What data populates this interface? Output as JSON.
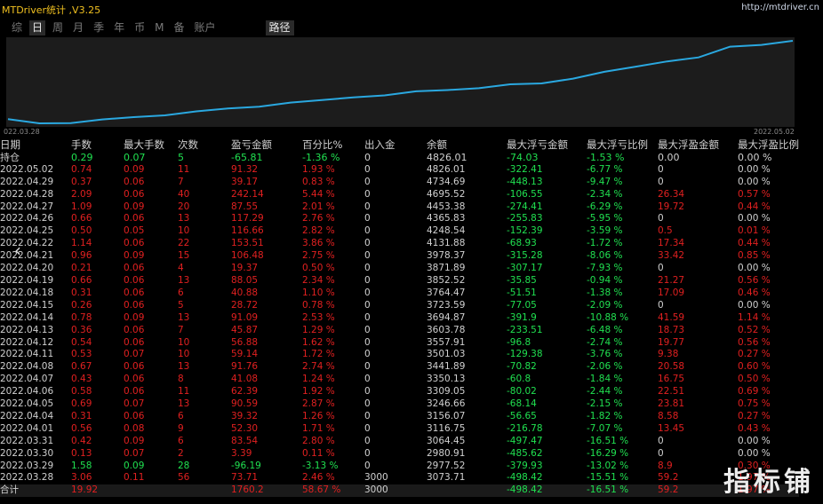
{
  "app": {
    "title": "MTDriver统计 ,V3.25",
    "url": "http://mtdriver.cn",
    "watermark": "指标铺"
  },
  "tabs": [
    {
      "label": "综",
      "active": false
    },
    {
      "label": "日",
      "active": true
    },
    {
      "label": "周",
      "active": false
    },
    {
      "label": "月",
      "active": false
    },
    {
      "label": "季",
      "active": false
    },
    {
      "label": "年",
      "active": false
    },
    {
      "label": "币",
      "active": false
    },
    {
      "label": "M",
      "active": false
    },
    {
      "label": "备",
      "active": false
    },
    {
      "label": "账户",
      "active": false
    }
  ],
  "path_tab": "路径",
  "chart_data": {
    "type": "line",
    "x_start_label": "022.03.28",
    "x_end_label": "2022.05.02",
    "x": [
      "2022.03.28",
      "2022.03.29",
      "2022.03.30",
      "2022.03.31",
      "2022.04.01",
      "2022.04.04",
      "2022.04.05",
      "2022.04.06",
      "2022.04.07",
      "2022.04.08",
      "2022.04.11",
      "2022.04.12",
      "2022.04.13",
      "2022.04.14",
      "2022.04.15",
      "2022.04.18",
      "2022.04.19",
      "2022.04.20",
      "2022.04.21",
      "2022.04.22",
      "2022.04.25",
      "2022.04.26",
      "2022.04.27",
      "2022.04.28",
      "2022.04.29",
      "2022.05.02"
    ],
    "values": [
      3073.71,
      2977.52,
      2980.91,
      3064.45,
      3116.75,
      3156.07,
      3246.66,
      3309.05,
      3350.13,
      3441.89,
      3501.03,
      3557.91,
      3603.78,
      3694.87,
      3723.59,
      3764.47,
      3852.52,
      3871.89,
      3978.37,
      4131.88,
      4248.54,
      4365.83,
      4453.38,
      4695.52,
      4734.69,
      4826.01
    ],
    "line_color": "#2aa8e0"
  },
  "table": {
    "headers": [
      "日期",
      "手数",
      "最大手数",
      "次数",
      "盈亏金额",
      "百分比%",
      "出入金",
      "余额",
      "最大浮亏金额",
      "最大浮亏比例",
      "最大浮盈金额",
      "最大浮盈比例"
    ],
    "hold_row": [
      "持仓",
      "0.29",
      "0.07",
      "5",
      "-65.81",
      "-1.36 %",
      "0",
      "4826.01",
      "-74.03",
      "-1.53 %",
      "0.00",
      "0.00 %"
    ],
    "rows": [
      [
        "2022.05.02",
        "0.74",
        "0.09",
        "11",
        "91.32",
        "1.93 %",
        "0",
        "4826.01",
        "-322.41",
        "-6.77 %",
        "0",
        "0.00 %"
      ],
      [
        "2022.04.29",
        "0.37",
        "0.06",
        "7",
        "39.17",
        "0.83 %",
        "0",
        "4734.69",
        "-448.13",
        "-9.47 %",
        "0",
        "0.00 %"
      ],
      [
        "2022.04.28",
        "2.09",
        "0.06",
        "40",
        "242.14",
        "5.44 %",
        "0",
        "4695.52",
        "-106.55",
        "-2.34 %",
        "26.34",
        "0.57 %"
      ],
      [
        "2022.04.27",
        "1.09",
        "0.09",
        "20",
        "87.55",
        "2.01 %",
        "0",
        "4453.38",
        "-274.41",
        "-6.29 %",
        "19.72",
        "0.44 %"
      ],
      [
        "2022.04.26",
        "0.66",
        "0.06",
        "13",
        "117.29",
        "2.76 %",
        "0",
        "4365.83",
        "-255.83",
        "-5.95 %",
        "0",
        "0.00 %"
      ],
      [
        "2022.04.25",
        "0.50",
        "0.05",
        "10",
        "116.66",
        "2.82 %",
        "0",
        "4248.54",
        "-152.39",
        "-3.59 %",
        "0.5",
        "0.01 %"
      ],
      [
        "2022.04.22",
        "1.14",
        "0.06",
        "22",
        "153.51",
        "3.86 %",
        "0",
        "4131.88",
        "-68.93",
        "-1.72 %",
        "17.34",
        "0.44 %"
      ],
      [
        "2022.04.21",
        "0.96",
        "0.09",
        "15",
        "106.48",
        "2.75 %",
        "0",
        "3978.37",
        "-315.28",
        "-8.06 %",
        "33.42",
        "0.85 %"
      ],
      [
        "2022.04.20",
        "0.21",
        "0.06",
        "4",
        "19.37",
        "0.50 %",
        "0",
        "3871.89",
        "-307.17",
        "-7.93 %",
        "0",
        "0.00 %"
      ],
      [
        "2022.04.19",
        "0.66",
        "0.06",
        "13",
        "88.05",
        "2.34 %",
        "0",
        "3852.52",
        "-35.85",
        "-0.94 %",
        "21.27",
        "0.56 %"
      ],
      [
        "2022.04.18",
        "0.31",
        "0.06",
        "6",
        "40.88",
        "1.10 %",
        "0",
        "3764.47",
        "-51.51",
        "-1.38 %",
        "17.09",
        "0.46 %"
      ],
      [
        "2022.04.15",
        "0.26",
        "0.06",
        "5",
        "28.72",
        "0.78 %",
        "0",
        "3723.59",
        "-77.05",
        "-2.09 %",
        "0",
        "0.00 %"
      ],
      [
        "2022.04.14",
        "0.78",
        "0.09",
        "13",
        "91.09",
        "2.53 %",
        "0",
        "3694.87",
        "-391.9",
        "-10.88 %",
        "41.59",
        "1.14 %"
      ],
      [
        "2022.04.13",
        "0.36",
        "0.06",
        "7",
        "45.87",
        "1.29 %",
        "0",
        "3603.78",
        "-233.51",
        "-6.48 %",
        "18.73",
        "0.52 %"
      ],
      [
        "2022.04.12",
        "0.54",
        "0.06",
        "10",
        "56.88",
        "1.62 %",
        "0",
        "3557.91",
        "-96.8",
        "-2.74 %",
        "19.77",
        "0.56 %"
      ],
      [
        "2022.04.11",
        "0.53",
        "0.07",
        "10",
        "59.14",
        "1.72 %",
        "0",
        "3501.03",
        "-129.38",
        "-3.76 %",
        "9.38",
        "0.27 %"
      ],
      [
        "2022.04.08",
        "0.67",
        "0.06",
        "13",
        "91.76",
        "2.74 %",
        "0",
        "3441.89",
        "-70.82",
        "-2.06 %",
        "20.58",
        "0.60 %"
      ],
      [
        "2022.04.07",
        "0.43",
        "0.06",
        "8",
        "41.08",
        "1.24 %",
        "0",
        "3350.13",
        "-60.8",
        "-1.84 %",
        "16.75",
        "0.50 %"
      ],
      [
        "2022.04.06",
        "0.58",
        "0.06",
        "11",
        "62.39",
        "1.92 %",
        "0",
        "3309.05",
        "-80.02",
        "-2.44 %",
        "22.51",
        "0.69 %"
      ],
      [
        "2022.04.05",
        "0.69",
        "0.07",
        "13",
        "90.59",
        "2.87 %",
        "0",
        "3246.66",
        "-68.14",
        "-2.15 %",
        "23.81",
        "0.75 %"
      ],
      [
        "2022.04.04",
        "0.31",
        "0.06",
        "6",
        "39.32",
        "1.26 %",
        "0",
        "3156.07",
        "-56.65",
        "-1.82 %",
        "8.58",
        "0.27 %"
      ],
      [
        "2022.04.01",
        "0.56",
        "0.08",
        "9",
        "52.30",
        "1.71 %",
        "0",
        "3116.75",
        "-216.78",
        "-7.07 %",
        "13.45",
        "0.43 %"
      ],
      [
        "2022.03.31",
        "0.42",
        "0.09",
        "6",
        "83.54",
        "2.80 %",
        "0",
        "3064.45",
        "-497.47",
        "-16.51 %",
        "0",
        "0.00 %"
      ],
      [
        "2022.03.30",
        "0.13",
        "0.07",
        "2",
        "3.39",
        "0.11 %",
        "0",
        "2980.91",
        "-485.62",
        "-16.29 %",
        "0",
        "0.00 %"
      ],
      [
        "2022.03.29",
        "1.58",
        "0.09",
        "28",
        "-96.19",
        "-3.13 %",
        "0",
        "2977.52",
        "-379.93",
        "-13.02 %",
        "8.9",
        "0.30 %"
      ],
      [
        "2022.03.28",
        "3.06",
        "0.11",
        "56",
        "73.71",
        "2.46 %",
        "3000",
        "3073.71",
        "-498.42",
        "-15.51 %",
        "59.2",
        "1.97 %"
      ]
    ],
    "total_row": [
      "合计",
      "19.92",
      "",
      "",
      "1760.2",
      "58.67 %",
      "3000",
      "",
      "-498.42",
      "-16.51 %",
      "59.2",
      "1.97 %"
    ]
  },
  "colors": {
    "header": "#d0d0d0",
    "date": "#d0d0d0",
    "profit": "#e02020",
    "loss": "#20e050",
    "neutral": "#d0d0d0",
    "title": "#f0c020"
  }
}
